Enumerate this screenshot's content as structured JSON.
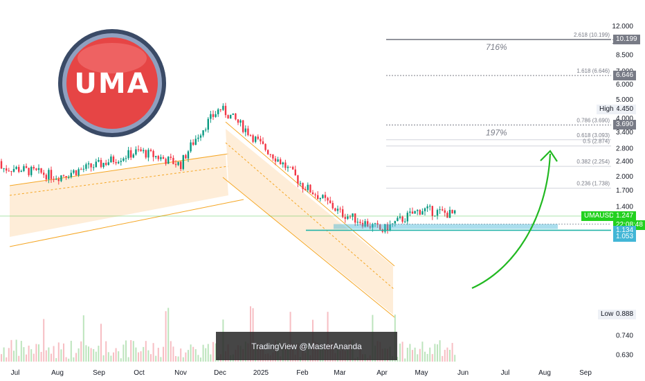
{
  "chart_data": {
    "type": "candlestick",
    "symbol": "UMAUSDT",
    "scale": "log",
    "x_ticks": [
      "Jul",
      "Aug",
      "Sep",
      "Oct",
      "Nov",
      "Dec",
      "2025",
      "Feb",
      "Mar",
      "Apr",
      "May",
      "Jun",
      "Jul",
      "Aug",
      "Sep"
    ],
    "y_ticks": [
      "12.000",
      "10.000",
      "8.500",
      "7.000",
      "6.000",
      "5.000",
      "4.000",
      "3.400",
      "2.800",
      "2.400",
      "2.000",
      "1.700",
      "1.400",
      "0.740",
      "0.630"
    ],
    "price_series": {
      "name": "UMAUSDT",
      "approx_monthly_closes": [
        [
          "Jul",
          2.2
        ],
        [
          "Aug",
          2.0
        ],
        [
          "Sep",
          2.3
        ],
        [
          "Oct",
          2.7
        ],
        [
          "Nov",
          2.3
        ],
        [
          "Dec",
          4.5
        ],
        [
          "2025",
          2.9
        ],
        [
          "Feb",
          1.8
        ],
        [
          "Mar",
          1.3
        ],
        [
          "Apr",
          1.05
        ],
        [
          "May",
          1.35
        ],
        [
          "Jun",
          1.247
        ]
      ]
    },
    "fibonacci": [
      {
        "label": "2.618 (10.199)",
        "value": 10.199,
        "tag": "10.199"
      },
      {
        "label": "1.618 (6.646)",
        "value": 6.646,
        "tag": "6.646"
      },
      {
        "label": "0.786 (3.690)",
        "value": 3.69,
        "tag": "3.690"
      },
      {
        "label": "0.618 (3.093)",
        "value": 3.093
      },
      {
        "label": "0.5 (2.874)",
        "value": 2.874
      },
      {
        "label": "0.382 (2.254)",
        "value": 2.254
      },
      {
        "label": "0.236 (1.738)",
        "value": 1.738
      }
    ],
    "annotations": [
      {
        "text": "716%",
        "target": 10.199
      },
      {
        "text": "197%",
        "target": 3.69
      }
    ],
    "price_labels": {
      "high_label": "High",
      "high_value": "4.450",
      "low_label": "Low",
      "low_value": "0.888",
      "symbol_label": "UMAUSDT",
      "last_price": "1.247",
      "countdown": "22:08:48",
      "support_top": "1.134",
      "support_bottom": "1.053"
    },
    "grid": false
  },
  "watermark": "TradingView @MasterAnanda",
  "logo": {
    "text": "UMA",
    "color": "#e64545"
  },
  "colors": {
    "up": "#089981",
    "down": "#f23645",
    "channel": "#f5a623",
    "support": "#42b6d6",
    "target_arrow": "#22b922"
  }
}
